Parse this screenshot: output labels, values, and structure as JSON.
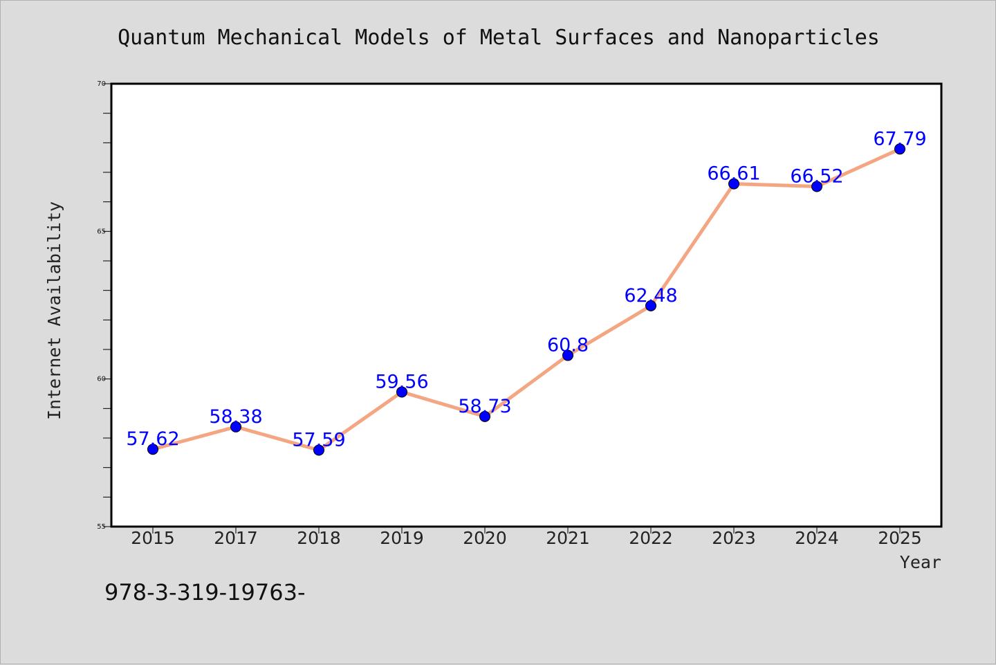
{
  "chart_data": {
    "type": "line",
    "title": "Quantum Mechanical Models of Metal Surfaces and Nanoparticles",
    "xlabel": "Year",
    "ylabel": "Internet Availability",
    "categories": [
      "2015",
      "2017",
      "2018",
      "2019",
      "2020",
      "2021",
      "2022",
      "2023",
      "2024",
      "2025"
    ],
    "series": [
      {
        "values": [
          57.62,
          58.38,
          57.59,
          59.56,
          58.73,
          60.8,
          62.48,
          66.61,
          66.52,
          67.79
        ],
        "labels": [
          "57.62",
          "58.38",
          "57.59",
          "59.56",
          "58.73",
          "60.8",
          "62.48",
          "66.61",
          "66.52",
          "67.79"
        ]
      }
    ],
    "ylim": [
      55,
      70
    ],
    "yticks": [
      55,
      60,
      65,
      70
    ],
    "ytick_labels": [
      "55",
      "60",
      "65",
      "70"
    ],
    "yminor_step": 1,
    "grid": false,
    "legend": "none",
    "colors": {
      "line": "#f4a582",
      "marker": "#0000ff",
      "label": "#0000ff",
      "background": "#dcdcdc",
      "plot_background": "#ffffff"
    }
  },
  "footnote": "978-3-319-19763-"
}
